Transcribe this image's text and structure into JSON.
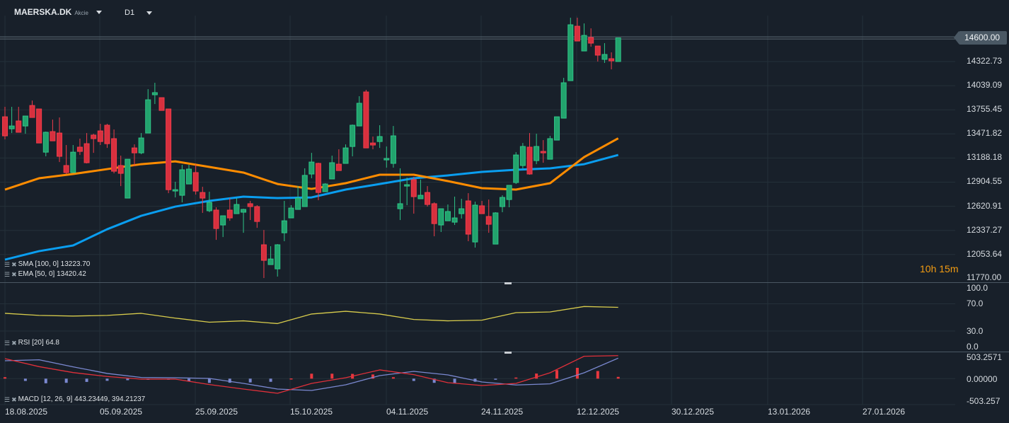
{
  "header": {
    "symbol": "MAERSKA.DK",
    "instrument_type": "Akcie",
    "timeframe": "D1"
  },
  "price_axis": {
    "labels": [
      "14322.73",
      "14039.09",
      "13755.45",
      "13471.82",
      "13188.18",
      "12904.55",
      "12620.91",
      "12337.27",
      "12053.64",
      "11770.00"
    ],
    "current_price": "14600.00"
  },
  "rsi_axis": {
    "labels": [
      "100.0",
      "70.0",
      "30.0",
      "0.0"
    ]
  },
  "macd_axis": {
    "labels": [
      "503.2571",
      "0.00000",
      "-503.257"
    ]
  },
  "date_axis": {
    "labels": [
      "18.08.2025",
      "05.09.2025",
      "25.09.2025",
      "15.10.2025",
      "04.11.2025",
      "24.11.2025",
      "12.12.2025",
      "30.12.2025",
      "13.01.2026",
      "27.01.2026"
    ]
  },
  "indicators": {
    "sma": {
      "label": "SMA [100,  0] 13223.70",
      "color": "#0a9ef0"
    },
    "ema": {
      "label": "EMA [50,  0] 13420.42",
      "color": "#ff8c00"
    },
    "rsi": {
      "label": "RSI [20]  64.8",
      "color": "#d8cc4c"
    },
    "macd": {
      "label": "MACD [12, 26, 9] 443.23449,  394.21237",
      "macd_color": "#e0303a",
      "signal_color": "#7a88d0"
    }
  },
  "countdown": "10h 15m",
  "colors": {
    "up": "#22a36d",
    "down": "#d8303e",
    "background": "#18202a"
  },
  "chart_data": {
    "type": "candlestick",
    "ylim": [
      11770,
      14600
    ],
    "candles_ohlc": [
      [
        13673,
        13790,
        13408,
        13449
      ],
      [
        13532,
        13790,
        13482,
        13565
      ],
      [
        13624,
        13790,
        13491,
        13491
      ],
      [
        13565,
        13682,
        13474,
        13682
      ],
      [
        13806,
        13864,
        13665,
        13665
      ],
      [
        13765,
        13765,
        13365,
        13365
      ],
      [
        13257,
        13499,
        13208,
        13491
      ],
      [
        13499,
        13640,
        13390,
        13390
      ],
      [
        13482,
        13665,
        13141,
        13208
      ],
      [
        13100,
        13341,
        13000,
        13017
      ],
      [
        13017,
        13341,
        13017,
        13257
      ],
      [
        13316,
        13416,
        13224,
        13266
      ],
      [
        13357,
        13482,
        13125,
        13133
      ],
      [
        13458,
        13474,
        13249,
        13416
      ],
      [
        13507,
        13590,
        13341,
        13382
      ],
      [
        13574,
        13590,
        13307,
        13357
      ],
      [
        13416,
        13524,
        13008,
        13033
      ],
      [
        13100,
        13216,
        12858,
        13008
      ],
      [
        12717,
        13174,
        12717,
        13174
      ],
      [
        13307,
        13349,
        13091,
        13249
      ],
      [
        13249,
        13482,
        13233,
        13424
      ],
      [
        13482,
        13998,
        13482,
        13873
      ],
      [
        13932,
        14073,
        13823,
        13957
      ],
      [
        13898,
        13898,
        13748,
        13748
      ],
      [
        13765,
        13765,
        12775,
        12816
      ],
      [
        12800,
        12909,
        12725,
        12816
      ],
      [
        12750,
        13108,
        12667,
        13050
      ],
      [
        12883,
        13108,
        12883,
        13058
      ],
      [
        13017,
        13116,
        12758,
        12800
      ],
      [
        12783,
        12850,
        12543,
        12717
      ],
      [
        12568,
        12792,
        12551,
        12667
      ],
      [
        12576,
        12609,
        12226,
        12359
      ],
      [
        12401,
        12509,
        12259,
        12509
      ],
      [
        12576,
        12717,
        12450,
        12484
      ],
      [
        12534,
        12717,
        12534,
        12642
      ],
      [
        12551,
        12592,
        12309,
        12584
      ],
      [
        12651,
        12684,
        12459,
        12617
      ],
      [
        12617,
        12634,
        12367,
        12442
      ],
      [
        12168,
        12342,
        11777,
        11985
      ],
      [
        11935,
        12151,
        11935,
        12001
      ],
      [
        11885,
        12176,
        11794,
        12168
      ],
      [
        12309,
        12684,
        12210,
        12450
      ],
      [
        12484,
        12634,
        12484,
        12600
      ],
      [
        12584,
        12858,
        12584,
        12717
      ],
      [
        12617,
        13067,
        12617,
        12984
      ],
      [
        13000,
        13249,
        12950,
        13141
      ],
      [
        13125,
        13133,
        12692,
        12783
      ],
      [
        12792,
        12892,
        12792,
        12883
      ],
      [
        12942,
        13216,
        12942,
        13133
      ],
      [
        13116,
        13291,
        13041,
        13041
      ],
      [
        13125,
        13349,
        13125,
        13307
      ],
      [
        13324,
        13582,
        13208,
        13574
      ],
      [
        13565,
        13915,
        13565,
        13832
      ],
      [
        13965,
        13990,
        13307,
        13307
      ],
      [
        13365,
        13441,
        13291,
        13341
      ],
      [
        13382,
        13574,
        13307,
        13441
      ],
      [
        13166,
        13324,
        13075,
        13183
      ],
      [
        13125,
        13565,
        13075,
        13449
      ],
      [
        12592,
        13067,
        12459,
        12651
      ],
      [
        12858,
        12958,
        12634,
        12875
      ],
      [
        12934,
        12967,
        12534,
        12734
      ],
      [
        12709,
        12934,
        12709,
        12750
      ],
      [
        12783,
        12858,
        12617,
        12642
      ],
      [
        12651,
        12667,
        12268,
        12417
      ],
      [
        12401,
        12592,
        12318,
        12592
      ],
      [
        12450,
        12642,
        12450,
        12559
      ],
      [
        12434,
        12734,
        12401,
        12484
      ],
      [
        12534,
        12709,
        12476,
        12592
      ],
      [
        12684,
        12775,
        12210,
        12293
      ],
      [
        12201,
        12675,
        12135,
        12634
      ],
      [
        12626,
        12684,
        12534,
        12534
      ],
      [
        12501,
        12700,
        12309,
        12409
      ],
      [
        12176,
        12551,
        12176,
        12543
      ],
      [
        12617,
        12750,
        12551,
        12725
      ],
      [
        12700,
        12867,
        12609,
        12867
      ],
      [
        12900,
        13257,
        12883,
        13224
      ],
      [
        13100,
        13365,
        13067,
        13324
      ],
      [
        13316,
        13482,
        12992,
        13000
      ],
      [
        13158,
        13474,
        13116,
        13324
      ],
      [
        13266,
        13399,
        13133,
        13249
      ],
      [
        13174,
        13449,
        13174,
        13416
      ],
      [
        13399,
        13673,
        13399,
        13673
      ],
      [
        13657,
        14131,
        13657,
        14073
      ],
      [
        14098,
        14838,
        14098,
        14755
      ],
      [
        14738,
        14838,
        14564,
        14564
      ],
      [
        14447,
        14771,
        14447,
        14630
      ],
      [
        14605,
        14713,
        14497,
        14539
      ],
      [
        14505,
        14505,
        14323,
        14398
      ],
      [
        14348,
        14539,
        14306,
        14406
      ],
      [
        14356,
        14431,
        14231,
        14331
      ],
      [
        14323,
        14600,
        14323,
        14600
      ]
    ],
    "sma_100": [
      11993,
      12093,
      12160,
      12351,
      12509,
      12617,
      12684,
      12734,
      12717,
      12725,
      12817,
      12883,
      12950,
      12984,
      13025,
      13050,
      13067,
      13116,
      13224
    ],
    "ema_50": [
      12817,
      12950,
      13000,
      13058,
      13116,
      13149,
      13083,
      13017,
      12883,
      12825,
      12892,
      12992,
      12992,
      12917,
      12834,
      12817,
      12892,
      13199,
      13420
    ],
    "rsi_20": [
      56,
      53,
      52,
      53,
      56,
      49,
      43,
      45,
      41,
      55,
      59,
      55,
      47,
      45,
      46,
      57,
      58,
      66,
      64.8
    ],
    "rsi_ylim": [
      0,
      100
    ],
    "macd_line": [
      385,
      231,
      117,
      41,
      -9,
      -9,
      -113,
      -200,
      -281,
      -91,
      18,
      168,
      77,
      -77,
      -132,
      -91,
      113,
      431,
      443
    ],
    "macd_signal": [
      344,
      363,
      227,
      100,
      23,
      18,
      4,
      -91,
      -200,
      -227,
      -118,
      58,
      140,
      72,
      -64,
      -122,
      -100,
      113,
      394
    ],
    "macd_ylim": [
      -503.257,
      503.2571
    ]
  }
}
